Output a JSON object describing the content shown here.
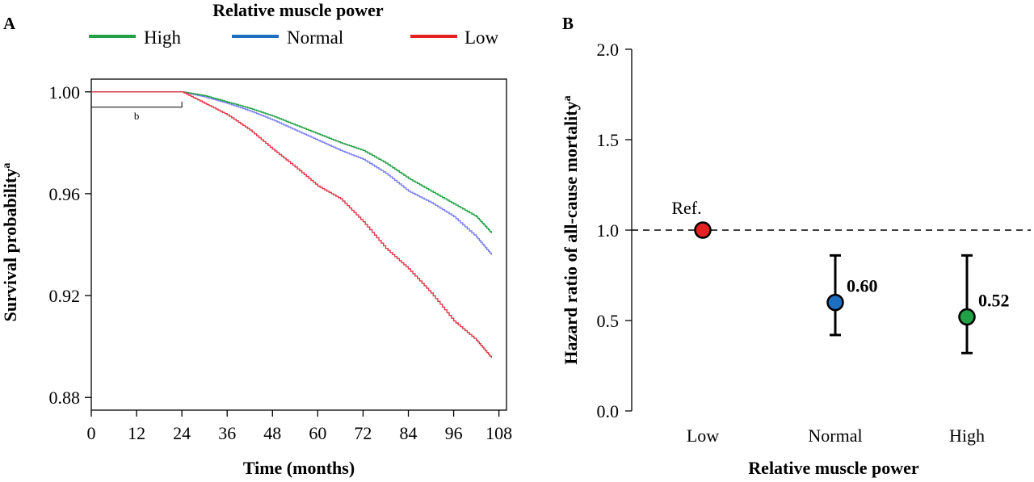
{
  "legend": {
    "title": "Relative muscle power",
    "items": [
      {
        "label": "High",
        "color": "#22a046"
      },
      {
        "label": "Normal",
        "color": "#1f6fc1"
      },
      {
        "label": "Low",
        "color": "#e52222"
      }
    ]
  },
  "panels": {
    "a": {
      "label": "A"
    },
    "b": {
      "label": "B"
    }
  },
  "chart_data": [
    {
      "type": "line",
      "title": "",
      "xlabel": "Time (months)",
      "ylabel_main": "Survival probability",
      "ylabel_sup": "a",
      "xlim": [
        0,
        110
      ],
      "ylim": [
        0.875,
        1.005
      ],
      "xticks": [
        "0",
        "12",
        "24",
        "36",
        "48",
        "60",
        "72",
        "84",
        "96",
        "108"
      ],
      "yticks": [
        "0.88",
        "0.92",
        "0.96",
        "1.00"
      ],
      "bracket": {
        "x": [
          0,
          24
        ],
        "label": "b"
      },
      "series": [
        {
          "name": "High",
          "color": "#22a046",
          "x": [
            0,
            24,
            30,
            36,
            42,
            48,
            54,
            60,
            66,
            72,
            78,
            84,
            90,
            96,
            102,
            106
          ],
          "y": [
            1.0,
            1.0,
            0.9985,
            0.996,
            0.9935,
            0.9905,
            0.987,
            0.9835,
            0.98,
            0.977,
            0.972,
            0.966,
            0.961,
            0.956,
            0.951,
            0.9445
          ]
        },
        {
          "name": "Normal",
          "color": "#7a7ff0",
          "x": [
            0,
            24,
            30,
            36,
            42,
            48,
            54,
            60,
            66,
            72,
            78,
            84,
            90,
            96,
            102,
            106
          ],
          "y": [
            1.0,
            1.0,
            0.998,
            0.9955,
            0.9925,
            0.989,
            0.985,
            0.981,
            0.977,
            0.9735,
            0.968,
            0.961,
            0.9565,
            0.951,
            0.943,
            0.936
          ]
        },
        {
          "name": "Low",
          "color": "#e0384a",
          "x": [
            0,
            24,
            30,
            36,
            42,
            48,
            54,
            60,
            66,
            72,
            78,
            84,
            90,
            96,
            102,
            106
          ],
          "y": [
            1.0,
            1.0,
            0.9955,
            0.991,
            0.985,
            0.9775,
            0.9705,
            0.963,
            0.958,
            0.949,
            0.9385,
            0.9305,
            0.921,
            0.91,
            0.9025,
            0.8955
          ]
        }
      ]
    },
    {
      "type": "scatter",
      "title": "",
      "xlabel": "Relative muscle power",
      "ylabel_main": "Hazard ratio of all-cause mortality",
      "ylabel_sup": "a",
      "ylim": [
        0,
        2.0
      ],
      "yticks": [
        "0.0",
        "0.5",
        "1.0",
        "1.5",
        "2.0"
      ],
      "reference_line": 1.0,
      "categories": [
        "Low",
        "Normal",
        "High"
      ],
      "points": [
        {
          "category": "Low",
          "value": 1.0,
          "lower": 1.0,
          "upper": 1.0,
          "label": "Ref.",
          "color": "#e52222"
        },
        {
          "category": "Normal",
          "value": 0.6,
          "lower": 0.42,
          "upper": 0.86,
          "label": "0.60",
          "color": "#1f6fc1"
        },
        {
          "category": "High",
          "value": 0.52,
          "lower": 0.32,
          "upper": 0.86,
          "label": "0.52",
          "color": "#22a046"
        }
      ]
    }
  ]
}
